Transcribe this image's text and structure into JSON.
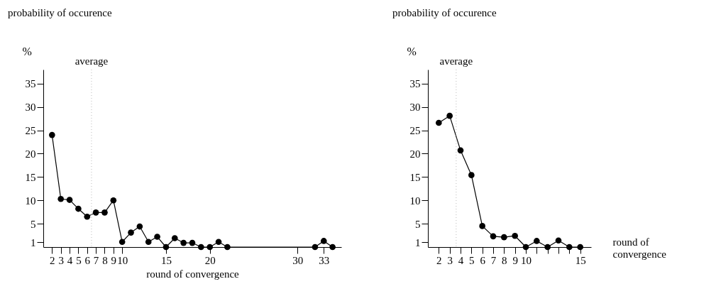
{
  "chart_data": [
    {
      "type": "line",
      "title": "probability of occurence",
      "ylabel": "%",
      "xlabel": "round of convergence",
      "marker": "circle",
      "line_style": "solid",
      "x": [
        2,
        3,
        4,
        5,
        6,
        7,
        8,
        9,
        10,
        11,
        12,
        13,
        14,
        15,
        16,
        17,
        18,
        19,
        20,
        21,
        22,
        32,
        33,
        34
      ],
      "series": [
        {
          "color": "#000000",
          "values": [
            24,
            10.3,
            10.1,
            8.2,
            6.5,
            7.4,
            7.4,
            10,
            1.1,
            3.1,
            4.4,
            1.1,
            2.2,
            0,
            1.9,
            0.9,
            0.9,
            0,
            0,
            1.1,
            0,
            0,
            1.3,
            0
          ]
        }
      ],
      "xlim": [
        1,
        35
      ],
      "xticks": [
        2,
        3,
        4,
        5,
        6,
        7,
        8,
        9,
        10,
        15,
        20,
        30,
        33
      ],
      "ylim": [
        0,
        38
      ],
      "yticks": [
        1,
        5,
        10,
        15,
        20,
        25,
        30,
        35
      ],
      "ref_lines": [
        {
          "axis": "x",
          "value": 6.5,
          "label": "average",
          "color": "#bbbbbb",
          "line_style": "dotted"
        }
      ]
    },
    {
      "type": "line",
      "title": "probability of occurence",
      "ylabel": "%",
      "xlabel": "round of convergence",
      "marker": "circle",
      "line_style": "solid",
      "x": [
        2,
        3,
        4,
        5,
        6,
        7,
        8,
        9,
        10,
        11,
        12,
        13,
        14,
        15
      ],
      "series": [
        {
          "color": "#000000",
          "values": [
            26.6,
            28.1,
            20.7,
            15.4,
            4.5,
            2.3,
            2.1,
            2.4,
            0,
            1.3,
            0,
            1.4,
            0,
            0
          ]
        }
      ],
      "xlim": [
        1,
        16
      ],
      "xticks": [
        2,
        3,
        4,
        5,
        6,
        7,
        8,
        9,
        10,
        {
          "value": 11,
          "label": null
        },
        {
          "value": 12,
          "label": null
        },
        {
          "value": 13,
          "label": null
        },
        {
          "value": 14,
          "label": null
        },
        15
      ],
      "ylim": [
        0,
        38
      ],
      "yticks": [
        1,
        5,
        10,
        15,
        20,
        25,
        30,
        35
      ],
      "ref_lines": [
        {
          "axis": "x",
          "value": 3.6,
          "label": "average",
          "color": "#bbbbbb",
          "line_style": "dotted"
        }
      ]
    }
  ]
}
